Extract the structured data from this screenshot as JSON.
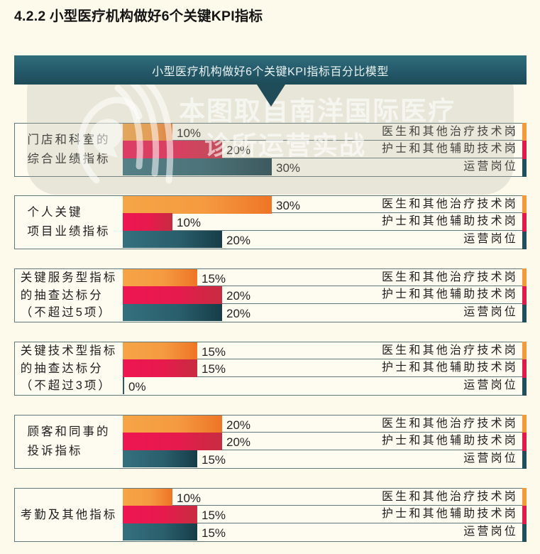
{
  "page": {
    "title": "4.2.2 小型医疗机构做好6个关键KPI指标"
  },
  "banner": {
    "title": "小型医疗机构做好6个关键KPI指标百分比模型"
  },
  "watermark": {
    "line1": "本图取自南洋国际医疗",
    "line2": "诊所运营实战",
    "logo": "merlion-logo-icon"
  },
  "roles": [
    "医生和其他治疗技术岗",
    "护士和其他辅助技术岗",
    "运营岗位"
  ],
  "colors": {
    "doctor": "#f59a40",
    "nurse": "#e61a4d",
    "ops": "#2a5f6c",
    "banner": "#24596a",
    "border": "#62777a",
    "background": "#fdfaec"
  },
  "groups": [
    {
      "label": "门店和科室的\n综合业绩指标",
      "rows": [
        {
          "role": "医生和其他治疗技术岗",
          "value": 10,
          "label": "10%"
        },
        {
          "role": "护士和其他辅助技术岗",
          "value": 20,
          "label": "20%"
        },
        {
          "role": "运营岗位",
          "value": 30,
          "label": "30%"
        }
      ]
    },
    {
      "label": "个人关键\n项目业绩指标",
      "rows": [
        {
          "role": "医生和其他治疗技术岗",
          "value": 30,
          "label": "30%"
        },
        {
          "role": "护士和其他辅助技术岗",
          "value": 10,
          "label": "10%"
        },
        {
          "role": "运营岗位",
          "value": 20,
          "label": "20%"
        }
      ]
    },
    {
      "label": "关键服务型指标\n的抽查达标分\n（不超过5项）",
      "rows": [
        {
          "role": "医生和其他治疗技术岗",
          "value": 15,
          "label": "15%"
        },
        {
          "role": "护士和其他辅助技术岗",
          "value": 20,
          "label": "20%"
        },
        {
          "role": "运营岗位",
          "value": 20,
          "label": "20%"
        }
      ]
    },
    {
      "label": "关键技术型指标\n的抽查达标分\n（不超过3项）",
      "rows": [
        {
          "role": "医生和其他治疗技术岗",
          "value": 15,
          "label": "15%"
        },
        {
          "role": "护士和其他辅助技术岗",
          "value": 15,
          "label": "15%"
        },
        {
          "role": "运营岗位",
          "value": 0,
          "label": "0%"
        }
      ]
    },
    {
      "label": "顾客和同事的\n投诉指标",
      "rows": [
        {
          "role": "医生和其他治疗技术岗",
          "value": 20,
          "label": "20%"
        },
        {
          "role": "护士和其他辅助技术岗",
          "value": 20,
          "label": "20%"
        },
        {
          "role": "运营岗位",
          "value": 15,
          "label": "15%"
        }
      ]
    },
    {
      "label": "考勤及其他指标",
      "rows": [
        {
          "role": "医生和其他治疗技术岗",
          "value": 10,
          "label": "10%"
        },
        {
          "role": "护士和其他辅助技术岗",
          "value": 15,
          "label": "15%"
        },
        {
          "role": "运营岗位",
          "value": 15,
          "label": "15%"
        }
      ]
    }
  ],
  "chart_data": {
    "type": "bar",
    "orientation": "horizontal",
    "title": "小型医疗机构做好6个关键KPI指标百分比模型",
    "categories": [
      "门店和科室的综合业绩指标",
      "个人关键项目业绩指标",
      "关键服务型指标的抽查达标分（不超过5项）",
      "关键技术型指标的抽查达标分（不超过3项）",
      "顾客和同事的投诉指标",
      "考勤及其他指标"
    ],
    "series": [
      {
        "name": "医生和其他治疗技术岗",
        "color": "#f59a40",
        "values": [
          10,
          30,
          15,
          15,
          20,
          10
        ]
      },
      {
        "name": "护士和其他辅助技术岗",
        "color": "#e61a4d",
        "values": [
          20,
          10,
          20,
          15,
          20,
          15
        ]
      },
      {
        "name": "运营岗位",
        "color": "#2a5f6c",
        "values": [
          30,
          20,
          20,
          0,
          15,
          15
        ]
      }
    ],
    "unit": "%",
    "xlabel": "",
    "ylabel": "",
    "xlim": [
      0,
      80
    ],
    "grid": false,
    "data_labels": true,
    "legend_position": "right (per-row labels)"
  }
}
